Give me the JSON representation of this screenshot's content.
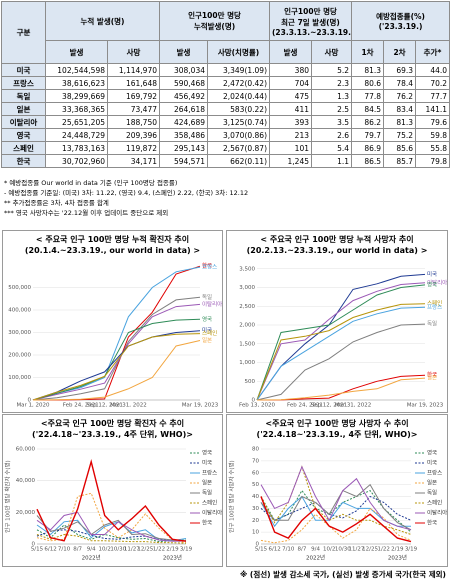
{
  "table": {
    "header_top": [
      "구분",
      "누적 발생(명)",
      "인구100만 명당\n누적발생(명)",
      "인구100만 명당\n최근 7일 발생(명)\n(23.3.13.~23.3.19.)",
      "예방접종률(%)\n('23.3.19.)"
    ],
    "header_sub": [
      "발생",
      "사망",
      "발생",
      "사망(치명률)",
      "발생",
      "사망",
      "1차",
      "2차",
      "추가*"
    ],
    "rows": [
      [
        "미국",
        "102,544,598",
        "1,114,970",
        "308,034",
        "3,349(1.09)",
        "380",
        "5.2",
        "81.3",
        "69.3",
        "44.0"
      ],
      [
        "프랑스",
        "38,616,623",
        "161,648",
        "590,468",
        "2,472(0.42)",
        "704",
        "2.3",
        "80.6",
        "78.4",
        "70.2"
      ],
      [
        "독일",
        "38,299,669",
        "169,792",
        "456,492",
        "2,024(0.44)",
        "475",
        "1.3",
        "77.8",
        "76.2",
        "77.7"
      ],
      [
        "일본",
        "33,368,365",
        "73,477",
        "264,618",
        "583(0.22)",
        "411",
        "2.5",
        "84.5",
        "83.4",
        "141.1"
      ],
      [
        "이탈리아",
        "25,651,205",
        "188,750",
        "424,689",
        "3,125(0.74)",
        "393",
        "3.5",
        "86.2",
        "81.3",
        "79.6"
      ],
      [
        "영국",
        "24,448,729",
        "209,396",
        "358,486",
        "3,070(0.86)",
        "213",
        "2.6",
        "79.7",
        "75.2",
        "59.8"
      ],
      [
        "스페인",
        "13,783,163",
        "119,872",
        "295,143",
        "2,567(0.87)",
        "101",
        "5.4",
        "86.9",
        "85.6",
        "55.8"
      ],
      [
        "한국",
        "30,702,960",
        "34,171",
        "594,571",
        "662(0.11)",
        "1,245",
        "1.1",
        "86.5",
        "85.7",
        "79.8"
      ]
    ]
  },
  "notes": [
    "* 예방접종률 Our world in data 기준 (인구 100명당 접종률)",
    " - 예방접종률 기준일: (미국) 3차: 11.22, (영국) 9.4, (스페인) 2.22, (한국) 3차: 12.12",
    "** 추가접종률은 3차, 4차 접종률 합계",
    "*** 영국 사망자수는 '22.12월 이후 업데이트 중단으로 제외"
  ],
  "chart_data": [
    {
      "type": "line",
      "title": "< 주요국 인구 100만 명당 누적 확진자 추이\n(20.1.4.~23.3.19., our world in data) >",
      "categories": [
        "Mar 1, 2020",
        null,
        "Feb 24, 2021",
        "Sep 12, 2021",
        "Mar 31, 2022",
        null,
        null,
        "Mar 19, 2023"
      ],
      "ylim": [
        0,
        600000
      ],
      "yticks": [
        0,
        {
          "value": 100000,
          "label": "100,000"
        },
        {
          "value": 200000,
          "label": "200,000"
        },
        {
          "value": 300000,
          "label": "300,000"
        },
        {
          "value": 400000,
          "label": "400,000"
        },
        {
          "value": 500000,
          "label": "500,000"
        }
      ],
      "grid": true,
      "legend": "end",
      "series": [
        {
          "name": "한국",
          "color": "#e00000",
          "values": [
            0,
            0,
            2000,
            5000,
            280000,
            390000,
            560000,
            594571
          ]
        },
        {
          "name": "프랑스",
          "color": "#4aa3df",
          "values": [
            0,
            30000,
            55000,
            100000,
            370000,
            500000,
            570000,
            590468
          ]
        },
        {
          "name": "독일",
          "color": "#7f7f7f",
          "values": [
            0,
            10000,
            28000,
            50000,
            260000,
            380000,
            445000,
            456492
          ]
        },
        {
          "name": "이탈리아",
          "color": "#9b59b6",
          "values": [
            0,
            25000,
            48000,
            75000,
            250000,
            370000,
            415000,
            424689
          ]
        },
        {
          "name": "영국",
          "color": "#2e8b57",
          "values": [
            0,
            30000,
            60000,
            105000,
            300000,
            340000,
            355000,
            358486
          ]
        },
        {
          "name": "미국",
          "color": "#1f3a93",
          "values": [
            0,
            35000,
            85000,
            125000,
            240000,
            280000,
            300000,
            308034
          ]
        },
        {
          "name": "스페인",
          "color": "#b7950b",
          "values": [
            0,
            35000,
            65000,
            105000,
            240000,
            280000,
            292000,
            295143
          ]
        },
        {
          "name": "일본",
          "color": "#f2a640",
          "values": [
            0,
            1000,
            3500,
            13000,
            50000,
            100000,
            240000,
            264618
          ]
        }
      ]
    },
    {
      "type": "line",
      "title": "< 주요국 인구 100만 명당 누적 사망자 추이\n(20.2.13.~23.3.19., our world in data) >",
      "categories": [
        "Feb 13, 2020",
        null,
        "Feb 24, 2021",
        "Sep 12, 2021",
        "Mar 31, 2022",
        null,
        null,
        "Mar 19, 2023"
      ],
      "ylim": [
        0,
        3600
      ],
      "yticks": [
        0,
        500,
        {
          "value": 1000,
          "label": "1,000"
        },
        {
          "value": 1500,
          "label": "1,500"
        },
        {
          "value": 2000,
          "label": "2,000"
        },
        {
          "value": 2500,
          "label": "2,500"
        },
        {
          "value": 3000,
          "label": "3,000"
        },
        {
          "value": 3500,
          "label": "3,500"
        }
      ],
      "grid": true,
      "legend": "end",
      "series": [
        {
          "name": "미국",
          "color": "#1f3a93",
          "values": [
            0,
            900,
            1500,
            2000,
            2950,
            3100,
            3300,
            3349
          ]
        },
        {
          "name": "이탈리아",
          "color": "#9b59b6",
          "values": [
            0,
            1500,
            1600,
            2150,
            2650,
            2900,
            3080,
            3125
          ]
        },
        {
          "name": "영국",
          "color": "#2e8b57",
          "values": [
            0,
            1800,
            1900,
            2000,
            2400,
            2800,
            3000,
            3070
          ]
        },
        {
          "name": "스페인",
          "color": "#b7950b",
          "values": [
            0,
            1600,
            1700,
            1850,
            2200,
            2400,
            2550,
            2567
          ]
        },
        {
          "name": "프랑스",
          "color": "#4aa3df",
          "values": [
            0,
            900,
            1300,
            1700,
            2100,
            2300,
            2450,
            2472
          ]
        },
        {
          "name": "독일",
          "color": "#7f7f7f",
          "values": [
            0,
            150,
            800,
            1100,
            1550,
            1800,
            2000,
            2024
          ]
        },
        {
          "name": "한국",
          "color": "#e00000",
          "values": [
            0,
            2,
            30,
            50,
            300,
            500,
            630,
            662
          ]
        },
        {
          "name": "일본",
          "color": "#f2a640",
          "values": [
            0,
            5,
            60,
            130,
            230,
            300,
            540,
            583
          ]
        }
      ]
    },
    {
      "type": "line",
      "title": "<주요국 인구 100만 명당 확진자 수 추이\n('22.4.18~'23.3.19., 4주 단위, WHO)>",
      "ylabel": "인구 100만 명당 확진자 수(명)",
      "year_labels": [
        "2022년",
        "2023년"
      ],
      "categories": [
        "5/15",
        "6/12",
        "7/10",
        "8/7",
        "9/4",
        "10/2",
        "10/30",
        "11/27",
        "12/25",
        "1/22",
        "2/19",
        "3/19"
      ],
      "ylim": [
        0,
        60000
      ],
      "yticks": [
        0,
        {
          "value": 20000,
          "label": "20,000"
        },
        {
          "value": 40000,
          "label": "40,000"
        },
        {
          "value": 60000,
          "label": "60,000"
        }
      ],
      "grid": true,
      "legend": "right",
      "series": [
        {
          "name": "영국",
          "color": "#2e8b57",
          "dashed": true,
          "values": [
            9000,
            4000,
            12000,
            6000,
            3000,
            6000,
            4000,
            3000,
            3500,
            1500,
            2000,
            2500
          ]
        },
        {
          "name": "미국",
          "color": "#1f3a93",
          "dashed": true,
          "values": [
            5000,
            8000,
            9000,
            8000,
            5500,
            3500,
            3000,
            4500,
            5000,
            3000,
            2500,
            1800
          ]
        },
        {
          "name": "프랑스",
          "color": "#4aa3df",
          "dashed": false,
          "values": [
            12000,
            6000,
            14000,
            15000,
            4000,
            11000,
            14000,
            7000,
            9000,
            2500,
            2000,
            3500
          ]
        },
        {
          "name": "일본",
          "color": "#f2a640",
          "dashed": true,
          "values": [
            4000,
            2000,
            3000,
            30000,
            32000,
            10000,
            4000,
            9000,
            19000,
            10000,
            2500,
            800
          ]
        },
        {
          "name": "독일",
          "color": "#7f7f7f",
          "dashed": false,
          "values": [
            18000,
            8000,
            10000,
            14000,
            6000,
            12000,
            15000,
            6000,
            6500,
            3500,
            2500,
            2000
          ]
        },
        {
          "name": "스페인",
          "color": "#b7950b",
          "dashed": true,
          "values": [
            6000,
            3000,
            6000,
            5000,
            2000,
            2000,
            1800,
            1500,
            1500,
            900,
            800,
            500
          ]
        },
        {
          "name": "이탈리아",
          "color": "#9b59b6",
          "dashed": false,
          "values": [
            15000,
            9000,
            18000,
            20000,
            6000,
            6000,
            14000,
            9000,
            5000,
            2500,
            1800,
            1900
          ]
        },
        {
          "name": "한국",
          "color": "#e00000",
          "dashed": false,
          "values": [
            22000,
            4000,
            2000,
            22000,
            52000,
            18000,
            9000,
            16000,
            24000,
            12000,
            3000,
            1800
          ]
        }
      ]
    },
    {
      "type": "line",
      "title": "<주요국 인구 100만 명당 사망자 수 추이\n('22.4.18~'23.3.19., 4주 단위, WHO)>",
      "ylabel": "인구 100만 명당 사망자 수(명)",
      "year_labels": [
        "2022년",
        "2023년"
      ],
      "categories": [
        "5/15",
        "6/12",
        "7/10",
        "8/7",
        "9/4",
        "10/2",
        "10/30",
        "11/27",
        "12/25",
        "1/22",
        "2/19",
        "3/19"
      ],
      "ylim": [
        0,
        80
      ],
      "yticks": [
        0,
        10,
        20,
        30,
        40,
        50,
        60,
        70,
        80
      ],
      "grid": true,
      "legend": "right",
      "series": [
        {
          "name": "영국",
          "color": "#2e8b57",
          "dashed": true,
          "values": [
            40,
            20,
            25,
            45,
            30,
            25,
            35,
            40,
            45,
            30,
            20,
            10
          ]
        },
        {
          "name": "미국",
          "color": "#1f3a93",
          "dashed": true,
          "values": [
            30,
            20,
            25,
            30,
            35,
            25,
            22,
            28,
            40,
            35,
            25,
            20
          ]
        },
        {
          "name": "프랑스",
          "color": "#4aa3df",
          "dashed": false,
          "values": [
            35,
            15,
            30,
            40,
            20,
            20,
            35,
            30,
            30,
            20,
            15,
            15
          ]
        },
        {
          "name": "일본",
          "color": "#f2a640",
          "dashed": true,
          "values": [
            3,
            1,
            3,
            12,
            25,
            15,
            5,
            12,
            30,
            22,
            8,
            3
          ]
        },
        {
          "name": "독일",
          "color": "#7f7f7f",
          "dashed": false,
          "values": [
            35,
            20,
            20,
            40,
            35,
            25,
            45,
            40,
            50,
            30,
            18,
            12
          ]
        },
        {
          "name": "스페인",
          "color": "#b7950b",
          "dashed": true,
          "values": [
            40,
            18,
            35,
            65,
            30,
            20,
            25,
            20,
            20,
            15,
            12,
            8
          ]
        },
        {
          "name": "이탈리아",
          "color": "#9b59b6",
          "dashed": false,
          "values": [
            50,
            30,
            35,
            65,
            40,
            20,
            45,
            55,
            35,
            20,
            15,
            12
          ]
        },
        {
          "name": "한국",
          "color": "#e00000",
          "dashed": false,
          "values": [
            40,
            10,
            5,
            20,
            30,
            15,
            10,
            17,
            25,
            15,
            5,
            2
          ]
        }
      ]
    }
  ],
  "footer": "※ (점선) 발생 감소세 국가, (실선) 발생 증가세 국가(한국 제외)"
}
